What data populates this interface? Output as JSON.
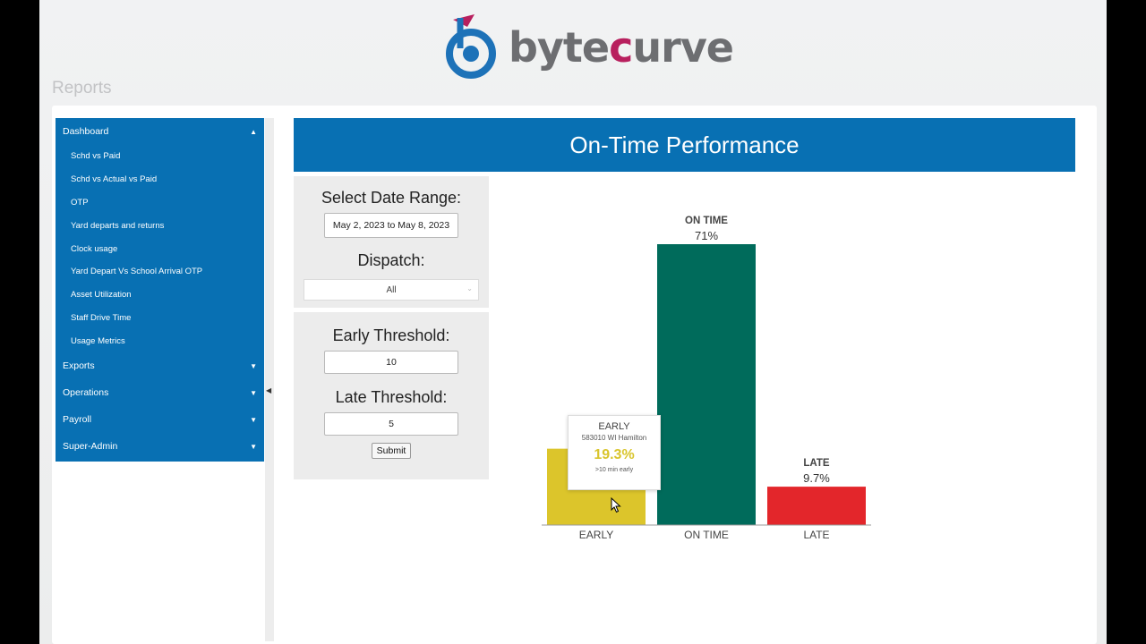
{
  "brand": {
    "name_part1": "byte",
    "name_accent": "c",
    "name_part2": "urve",
    "logo_color_blue": "#1d72b8",
    "logo_color_magenta": "#b8205e"
  },
  "section_title": "Reports",
  "sidebar": {
    "dashboard_label": "Dashboard",
    "dashboard_items": [
      "Schd vs Paid",
      "Schd vs Actual vs Paid",
      "OTP",
      "Yard departs and returns",
      "Clock usage",
      "Yard Depart Vs School Arrival OTP",
      "Asset Utilization",
      "Staff Drive Time",
      "Usage Metrics"
    ],
    "sections": [
      "Exports",
      "Operations",
      "Payroll",
      "Super-Admin"
    ]
  },
  "report": {
    "title": "On-Time Performance",
    "date_range_label": "Select Date Range:",
    "date_range_value": "May 2, 2023 to May 8, 2023",
    "dispatch_label": "Dispatch:",
    "dispatch_value": "All",
    "early_threshold_label": "Early Threshold:",
    "early_threshold_value": "10",
    "late_threshold_label": "Late Threshold:",
    "late_threshold_value": "5",
    "submit_label": "Submit"
  },
  "chart_data": {
    "type": "bar",
    "categories": [
      "EARLY",
      "ON TIME",
      "LATE"
    ],
    "values": [
      19.3,
      71,
      9.7
    ],
    "value_labels": [
      "19.3%",
      "71%",
      "9.7%"
    ],
    "colors": [
      "#dcc52b",
      "#006b5b",
      "#e3262b"
    ],
    "ylim": [
      0,
      71
    ],
    "title": "",
    "xlabel": "",
    "ylabel": ""
  },
  "tooltip": {
    "category": "EARLY",
    "location": "583010 WI Hamilton",
    "value": "19.3%",
    "note": ">10 min early"
  }
}
